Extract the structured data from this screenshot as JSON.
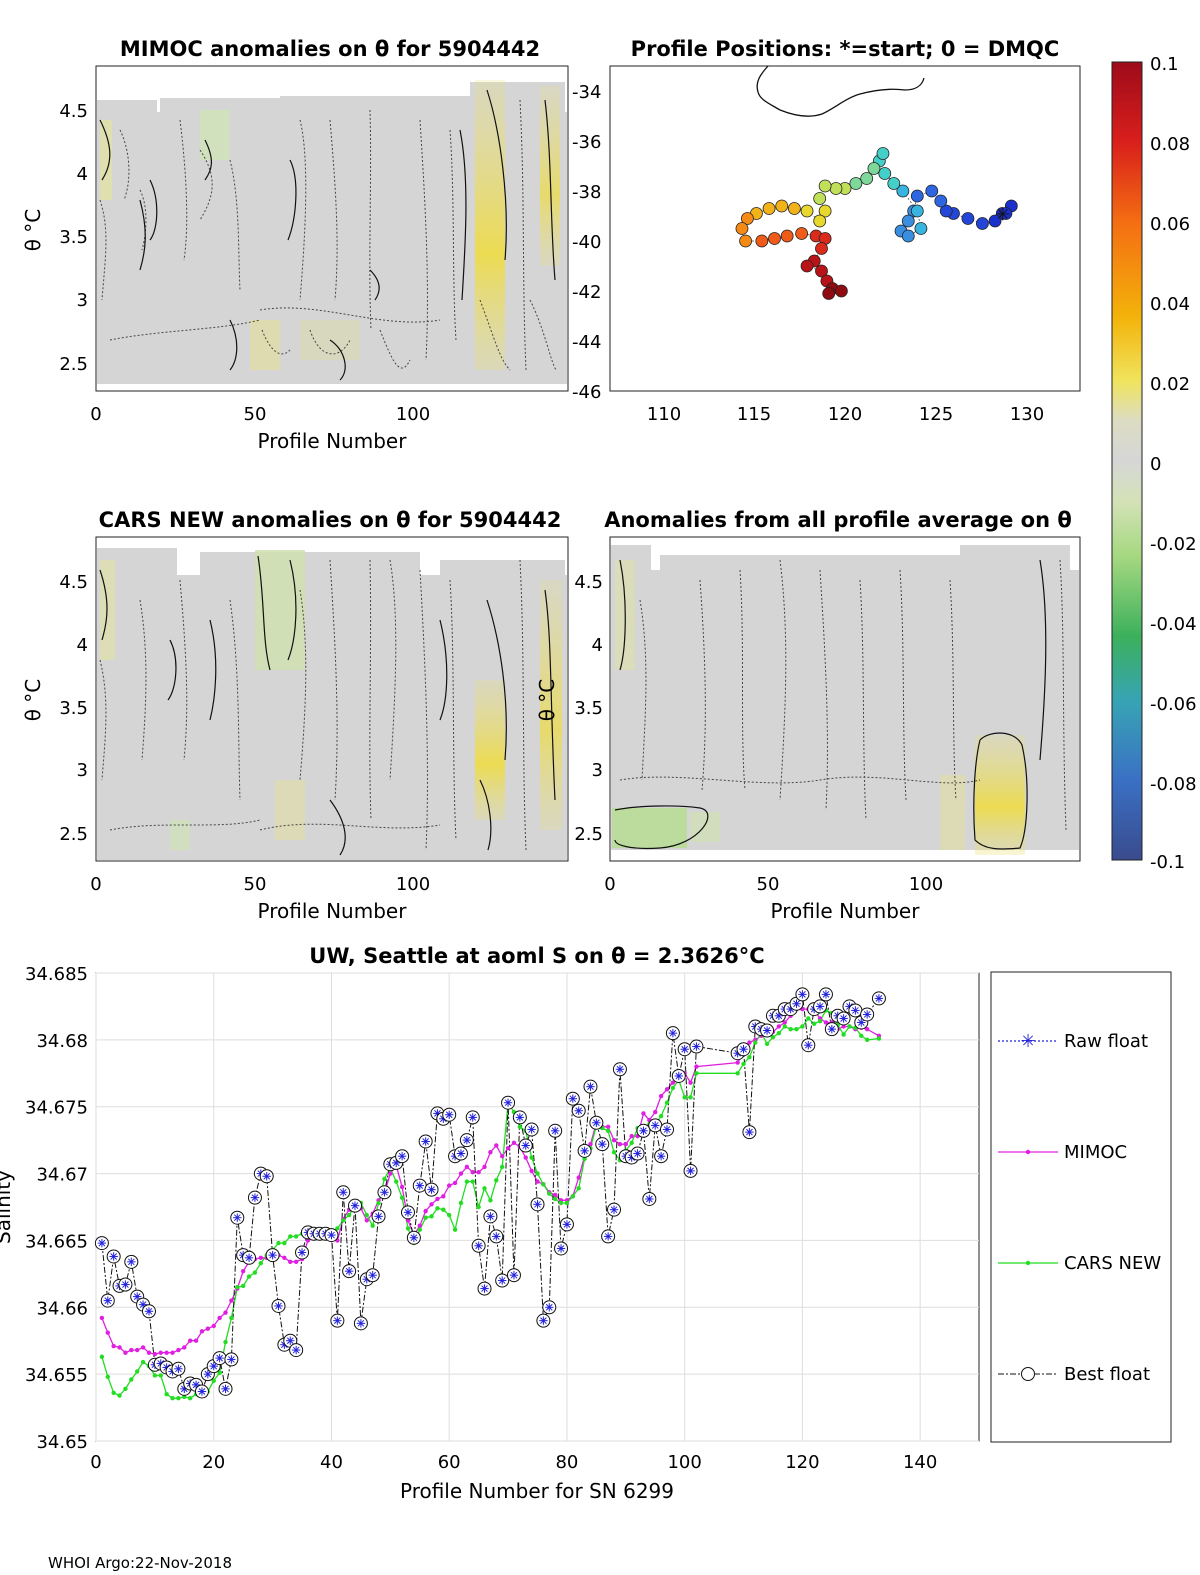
{
  "footer": "WHOI Argo:22-Nov-2018",
  "panels": {
    "mimoc": {
      "title": "MIMOC anomalies on θ  for 5904442",
      "ylabel": "θ °C",
      "xlabel": "Profile Number",
      "xticks": [
        "0",
        "50",
        "100"
      ],
      "yticks": [
        "2.5",
        "3",
        "3.5",
        "4",
        "4.5"
      ]
    },
    "positions": {
      "title": "Profile Positions: *=start; 0 = DMQC",
      "xticks": [
        "110",
        "115",
        "120",
        "125",
        "130"
      ],
      "yticks": [
        "-34",
        "-36",
        "-38",
        "-40",
        "-42",
        "-44",
        "-46"
      ]
    },
    "cars": {
      "title": "CARS NEW anomalies on θ for 5904442",
      "ylabel": "θ °C",
      "xlabel": "Profile Number",
      "xticks": [
        "0",
        "50",
        "100"
      ],
      "yticks": [
        "2.5",
        "3",
        "3.5",
        "4",
        "4.5"
      ]
    },
    "allavg": {
      "title": "Anomalies from all profile average on θ",
      "ylabel": "θ °C",
      "xlabel": "Profile Number",
      "xticks": [
        "0",
        "50",
        "100"
      ],
      "yticks": [
        "2.5",
        "3",
        "3.5",
        "4",
        "4.5"
      ]
    }
  },
  "colorbar": {
    "ticks": [
      "0.1",
      "0.08",
      "0.06",
      "0.04",
      "0.02",
      "0",
      "-0.02",
      "-0.04",
      "-0.06",
      "-0.08",
      "-0.1"
    ]
  },
  "chart_data": {
    "type": "line",
    "title": "UW, Seattle at aoml S on θ = 2.3626°C",
    "xlabel": "Profile Number for SN 6299",
    "ylabel": "Salinity",
    "xlim": [
      0,
      150
    ],
    "ylim": [
      34.65,
      34.685
    ],
    "xticks": [
      "0",
      "20",
      "40",
      "60",
      "80",
      "100",
      "120",
      "140"
    ],
    "yticks": [
      "34.65",
      "34.655",
      "34.66",
      "34.665",
      "34.67",
      "34.675",
      "34.68",
      "34.685"
    ],
    "legend": [
      "Raw float",
      "MIMOC",
      "CARS NEW",
      "Best float"
    ],
    "legend_placement": "outside-right",
    "series": [
      {
        "name": "Best float",
        "x": [
          1,
          2,
          3,
          4,
          5,
          6,
          7,
          8,
          9,
          10,
          11,
          12,
          13,
          14,
          15,
          16,
          17,
          18,
          19,
          20,
          21,
          22,
          23,
          24,
          25,
          26,
          27,
          28,
          29,
          30,
          31,
          32,
          33,
          34,
          35,
          36,
          37,
          38,
          39,
          40,
          41,
          42,
          43,
          44,
          45,
          46,
          47,
          48,
          49,
          50,
          51,
          52,
          53,
          54,
          55,
          56,
          57,
          58,
          59,
          60,
          61,
          62,
          63,
          64,
          65,
          66,
          67,
          68,
          69,
          70,
          71,
          72,
          73,
          74,
          75,
          76,
          77,
          78,
          79,
          80,
          81,
          82,
          83,
          84,
          85,
          86,
          87,
          88,
          89,
          90,
          91,
          92,
          93,
          94,
          95,
          96,
          97,
          98,
          99,
          100,
          101,
          102,
          109,
          110,
          111,
          112,
          113,
          114,
          115,
          116,
          117,
          118,
          119,
          120,
          121,
          122,
          123,
          124,
          125,
          126,
          127,
          128,
          129,
          130,
          131,
          133
        ],
        "values": [
          34.6648,
          34.6605,
          34.6638,
          34.6616,
          34.6617,
          34.6634,
          34.6608,
          34.6602,
          34.6597,
          34.6557,
          34.6558,
          34.6555,
          34.6552,
          34.6554,
          34.6539,
          34.6543,
          34.6542,
          34.6537,
          34.655,
          34.6556,
          34.6562,
          34.6539,
          34.6561,
          34.6667,
          34.6639,
          34.6637,
          34.6682,
          34.67,
          34.6698,
          34.6639,
          34.6601,
          34.6572,
          34.6575,
          34.6568,
          34.6641,
          34.6656,
          34.6655,
          34.6655,
          34.6655,
          34.6654,
          34.659,
          34.6686,
          34.6627,
          34.6676,
          34.6588,
          34.6621,
          34.6624,
          34.6668,
          34.6686,
          34.6707,
          34.6708,
          34.6713,
          34.6671,
          34.6652,
          34.6691,
          34.6724,
          34.6688,
          34.6745,
          34.6741,
          34.6744,
          34.6713,
          34.6715,
          34.6725,
          34.6742,
          34.6646,
          34.6614,
          34.6668,
          34.6653,
          34.662,
          34.6753,
          34.6624,
          34.6742,
          34.6721,
          34.6733,
          34.6677,
          34.659,
          34.66,
          34.6732,
          34.6644,
          34.6662,
          34.6756,
          34.6747,
          34.6717,
          34.6765,
          34.6738,
          34.6722,
          34.6653,
          34.6673,
          34.6778,
          34.6713,
          34.6712,
          34.6715,
          34.6732,
          34.6681,
          34.6736,
          34.6713,
          34.6733,
          34.6805,
          34.6773,
          34.6793,
          34.6702,
          34.6795,
          34.679,
          34.6793,
          34.6731,
          34.681,
          34.6808,
          34.6807,
          34.6818,
          34.6818,
          34.6823,
          34.6823,
          34.6827,
          34.6834,
          34.6796,
          34.6823,
          34.6825,
          34.6834,
          34.6808,
          34.6818,
          34.6816,
          34.6825,
          34.6822,
          34.6813,
          34.6819,
          34.6831
        ]
      },
      {
        "name": "Raw float",
        "same_as": "Best float"
      },
      {
        "name": "MIMOC",
        "x": [
          1,
          2,
          3,
          4,
          5,
          6,
          7,
          8,
          9,
          10,
          11,
          12,
          13,
          14,
          15,
          16,
          17,
          18,
          19,
          20,
          21,
          22,
          23,
          24,
          25,
          26,
          27,
          28,
          29,
          30,
          31,
          32,
          33,
          34,
          35,
          36,
          37,
          38,
          39,
          40,
          41,
          42,
          43,
          44,
          45,
          46,
          47,
          48,
          49,
          50,
          51,
          52,
          53,
          54,
          55,
          56,
          57,
          58,
          59,
          60,
          61,
          62,
          63,
          64,
          65,
          66,
          67,
          68,
          69,
          70,
          71,
          72,
          73,
          74,
          75,
          76,
          77,
          78,
          79,
          80,
          81,
          82,
          83,
          84,
          85,
          86,
          87,
          88,
          89,
          90,
          91,
          92,
          93,
          94,
          95,
          96,
          97,
          98,
          99,
          100,
          101,
          102,
          109,
          110,
          111,
          112,
          113,
          114,
          115,
          116,
          117,
          118,
          119,
          120,
          121,
          122,
          123,
          124,
          125,
          126,
          127,
          128,
          129,
          130,
          131,
          133
        ],
        "values": [
          34.6592,
          34.6581,
          34.6571,
          34.657,
          34.6566,
          34.6568,
          34.6568,
          34.657,
          34.6566,
          34.6565,
          34.6566,
          34.6566,
          34.6566,
          34.6568,
          34.657,
          34.6575,
          34.6575,
          34.6582,
          34.6584,
          34.6586,
          34.6592,
          34.6596,
          34.6605,
          34.6614,
          34.6627,
          34.6634,
          34.6636,
          34.6637,
          34.6637,
          34.6639,
          34.6639,
          34.6637,
          34.6634,
          34.6634,
          34.6636,
          34.665,
          34.6654,
          34.6654,
          34.6655,
          34.6654,
          34.665,
          34.6666,
          34.6673,
          34.6674,
          34.6674,
          34.6665,
          34.667,
          34.668,
          34.6685,
          34.67,
          34.6706,
          34.669,
          34.6665,
          34.6654,
          34.6661,
          34.6672,
          34.6677,
          34.6681,
          34.6683,
          34.6691,
          34.6693,
          34.67,
          34.6705,
          34.6701,
          34.6701,
          34.6705,
          34.6716,
          34.6721,
          34.6713,
          34.6719,
          34.6723,
          34.672,
          34.6712,
          34.6702,
          34.6694,
          34.6692,
          34.6686,
          34.6684,
          34.668,
          34.668,
          34.6683,
          34.6697,
          34.6713,
          34.6722,
          34.6738,
          34.6735,
          34.6735,
          34.6725,
          34.6722,
          34.6722,
          34.6728,
          34.6728,
          34.6745,
          34.674,
          34.6746,
          34.6758,
          34.6763,
          34.6768,
          34.677,
          34.6775,
          34.6768,
          34.678,
          34.6783,
          34.679,
          34.6798,
          34.68,
          34.6803,
          34.6806,
          34.6806,
          34.681,
          34.6813,
          34.6818,
          34.6823,
          34.6823,
          34.6823,
          34.6822,
          34.6816,
          34.6813,
          34.6813,
          34.6808,
          34.681,
          34.681,
          34.6808,
          34.6809,
          34.6808,
          34.6803
        ]
      },
      {
        "name": "CARS NEW",
        "x": [
          1,
          2,
          3,
          4,
          5,
          6,
          7,
          8,
          9,
          10,
          11,
          12,
          13,
          14,
          15,
          16,
          17,
          18,
          19,
          20,
          21,
          22,
          23,
          24,
          25,
          26,
          27,
          28,
          29,
          30,
          31,
          32,
          33,
          34,
          35,
          36,
          37,
          38,
          39,
          40,
          41,
          42,
          43,
          44,
          45,
          46,
          47,
          48,
          49,
          50,
          51,
          52,
          53,
          54,
          55,
          56,
          57,
          58,
          59,
          60,
          61,
          62,
          63,
          64,
          65,
          66,
          67,
          68,
          69,
          70,
          71,
          72,
          73,
          74,
          75,
          76,
          77,
          78,
          79,
          80,
          81,
          82,
          83,
          84,
          85,
          86,
          87,
          88,
          89,
          90,
          91,
          92,
          93,
          94,
          95,
          96,
          97,
          98,
          99,
          100,
          101,
          102,
          109,
          110,
          111,
          112,
          113,
          114,
          115,
          116,
          117,
          118,
          119,
          120,
          121,
          122,
          123,
          124,
          125,
          126,
          127,
          128,
          129,
          130,
          131,
          133
        ],
        "values": [
          34.6563,
          34.6548,
          34.6536,
          34.6534,
          34.6539,
          34.6546,
          34.6552,
          34.6559,
          34.6556,
          34.6549,
          34.6549,
          34.6535,
          34.6532,
          34.6532,
          34.6533,
          34.6532,
          34.6535,
          34.6535,
          34.6537,
          34.6545,
          34.6551,
          34.6574,
          34.6592,
          34.6615,
          34.6616,
          34.6623,
          34.6626,
          34.6633,
          34.6639,
          34.6643,
          34.6648,
          34.6648,
          34.6653,
          34.6653,
          34.6655,
          34.6653,
          34.6655,
          34.6654,
          34.6655,
          34.6653,
          34.6659,
          34.6665,
          34.6669,
          34.6676,
          34.6678,
          34.6669,
          34.6661,
          34.6678,
          34.6696,
          34.6704,
          34.6694,
          34.6682,
          34.6659,
          34.6648,
          34.6658,
          34.6667,
          34.6668,
          34.6674,
          34.6673,
          34.6669,
          34.6658,
          34.6678,
          34.6694,
          34.6694,
          34.6675,
          34.6689,
          34.668,
          34.6695,
          34.6705,
          34.6753,
          34.6746,
          34.6735,
          34.6732,
          34.6712,
          34.67,
          34.6692,
          34.6685,
          34.6681,
          34.6678,
          34.6678,
          34.6683,
          34.6689,
          34.6711,
          34.6719,
          34.6736,
          34.6734,
          34.6732,
          34.6716,
          34.671,
          34.6717,
          34.6723,
          34.6734,
          34.673,
          34.6737,
          34.6736,
          34.6743,
          34.6753,
          34.6764,
          34.677,
          34.6757,
          34.6757,
          34.6775,
          34.6775,
          34.6782,
          34.6787,
          34.6798,
          34.6805,
          34.6797,
          34.6802,
          34.6805,
          34.681,
          34.6808,
          34.6808,
          34.681,
          34.6816,
          34.6812,
          34.6814,
          34.6822,
          34.682,
          34.6811,
          34.6804,
          34.681,
          34.6809,
          34.6803,
          34.68,
          34.6801
        ]
      }
    ]
  }
}
